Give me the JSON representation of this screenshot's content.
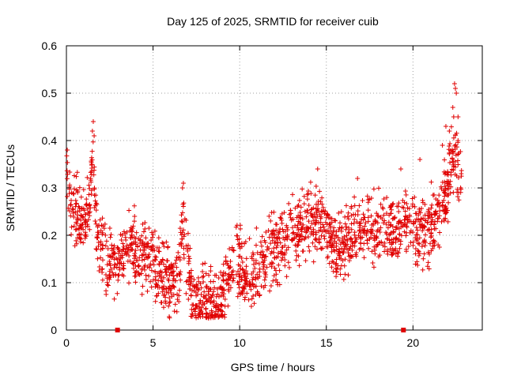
{
  "chart_data": {
    "type": "scatter",
    "title": "Day 125 of 2025, SRMTID for receiver cuib",
    "xlabel": "GPS time / hours",
    "ylabel": "SRMTID / TECUs",
    "xlim": [
      0,
      24
    ],
    "ylim": [
      0,
      0.6
    ],
    "xticks": [
      0,
      5,
      10,
      15,
      20
    ],
    "xtick_labels": [
      "0",
      "5",
      "10",
      "15",
      "20"
    ],
    "yticks": [
      0,
      0.1,
      0.2,
      0.3,
      0.4,
      0.5,
      0.6
    ],
    "ytick_labels": [
      "0",
      "0.1",
      "0.2",
      "0.3",
      "0.4",
      "0.5",
      "0.6"
    ],
    "grid": true,
    "marker": "plus",
    "color": "#e00000",
    "series": [
      {
        "name": "SRMTID",
        "trend_x": [
          0,
          0.1,
          0.3,
          0.6,
          1.0,
          1.3,
          1.5,
          1.7,
          2.0,
          2.5,
          3.0,
          3.5,
          4.0,
          4.5,
          5.0,
          5.5,
          6.0,
          6.5,
          6.7,
          7.0,
          7.5,
          8.0,
          8.5,
          9.0,
          9.5,
          9.8,
          10.2,
          10.5,
          11.0,
          11.5,
          12.0,
          12.5,
          13.0,
          14.0,
          15.0,
          15.5,
          16.0,
          17.0,
          18.0,
          19.0,
          19.5,
          20.0,
          20.5,
          21.0,
          21.5,
          22.0,
          22.4,
          22.8
        ],
        "trend_y": [
          0.33,
          0.3,
          0.25,
          0.25,
          0.22,
          0.24,
          0.37,
          0.24,
          0.18,
          0.13,
          0.15,
          0.18,
          0.17,
          0.15,
          0.14,
          0.11,
          0.1,
          0.11,
          0.22,
          0.12,
          0.06,
          0.055,
          0.06,
          0.07,
          0.12,
          0.16,
          0.12,
          0.1,
          0.12,
          0.15,
          0.18,
          0.19,
          0.2,
          0.23,
          0.22,
          0.17,
          0.18,
          0.21,
          0.22,
          0.21,
          0.25,
          0.22,
          0.2,
          0.22,
          0.25,
          0.3,
          0.38,
          0.3
        ],
        "spread": 0.035,
        "count": 1900,
        "extra_points": [
          {
            "x": 1.55,
            "y": 0.44
          },
          {
            "x": 1.5,
            "y": 0.42
          },
          {
            "x": 1.6,
            "y": 0.41
          },
          {
            "x": 0.05,
            "y": 0.38
          },
          {
            "x": 6.75,
            "y": 0.31
          },
          {
            "x": 6.7,
            "y": 0.3
          },
          {
            "x": 22.4,
            "y": 0.52
          },
          {
            "x": 22.45,
            "y": 0.51
          },
          {
            "x": 22.5,
            "y": 0.5
          },
          {
            "x": 22.3,
            "y": 0.47
          },
          {
            "x": 22.35,
            "y": 0.45
          },
          {
            "x": 22.6,
            "y": 0.45
          },
          {
            "x": 21.9,
            "y": 0.43
          },
          {
            "x": 22.1,
            "y": 0.42
          },
          {
            "x": 21.7,
            "y": 0.39
          },
          {
            "x": 22.6,
            "y": 0.4
          },
          {
            "x": 19.3,
            "y": 0.34
          },
          {
            "x": 20.4,
            "y": 0.36
          },
          {
            "x": 14.5,
            "y": 0.34
          },
          {
            "x": 16.8,
            "y": 0.32
          }
        ],
        "zero_points": [
          {
            "x": 2.95,
            "y": 0
          },
          {
            "x": 19.45,
            "y": 0
          }
        ]
      }
    ]
  }
}
